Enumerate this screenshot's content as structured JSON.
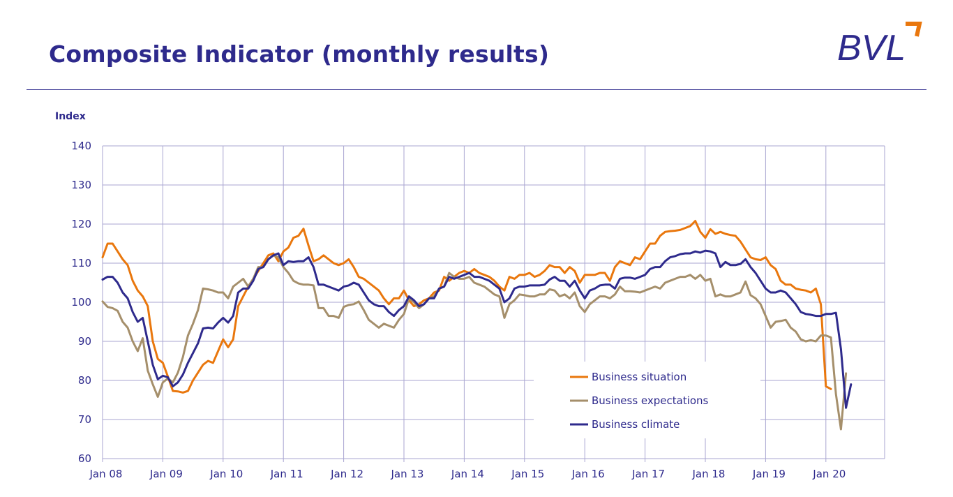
{
  "title": "Composite Indicator (monthly results)",
  "logo_text": "BVL",
  "colors": {
    "title": "#2e2a8c",
    "grid": "#a9a6d1",
    "situation": "#e9770d",
    "expectations": "#a58f6b",
    "climate": "#2e2a8c",
    "logo_accent": "#e9770d"
  },
  "chart_data": {
    "type": "line",
    "ylabel": "Index",
    "xlabel": "",
    "ylim": [
      60,
      140
    ],
    "yticks": [
      60,
      70,
      80,
      90,
      100,
      110,
      120,
      130,
      140
    ],
    "xticks": [
      "Jan 08",
      "Jan 09",
      "Jan 10",
      "Jan 11",
      "Jan 12",
      "Jan 13",
      "Jan 14",
      "Jan 15",
      "Jan 16",
      "Jan 17",
      "Jan 18",
      "Jan 19",
      "Jan 20"
    ],
    "start": "Jan 08",
    "grid": true,
    "legend_position": "bottom-right",
    "series": [
      {
        "name": "Business situation",
        "color": "#e9770d",
        "values": [
          111.5,
          115,
          115,
          113,
          111,
          109.5,
          105.5,
          103,
          101.5,
          99,
          90,
          85.5,
          84.5,
          81,
          77.3,
          77.2,
          76.9,
          77.3,
          80,
          82,
          84,
          85,
          84.5,
          87.5,
          90.5,
          88.5,
          90.5,
          99,
          101.5,
          104,
          106,
          108,
          110,
          112,
          112.5,
          110.5,
          113,
          114,
          116.5,
          117,
          118.8,
          114.5,
          110.5,
          111,
          112,
          111,
          110,
          109.5,
          110,
          111,
          109,
          106.5,
          106,
          105,
          104,
          103,
          101,
          99.5,
          101,
          101,
          103,
          100.5,
          99,
          99.5,
          100.5,
          101,
          102.5,
          103,
          106.5,
          105.5,
          106.5,
          107.5,
          108,
          107.5,
          108.5,
          107.5,
          107,
          106.5,
          105.5,
          104,
          103,
          106.5,
          106,
          107,
          107,
          107.5,
          106.5,
          107,
          108,
          109.5,
          109,
          109,
          107.5,
          109,
          108,
          105,
          107,
          107,
          107,
          107.5,
          107.5,
          105.5,
          109,
          110.5,
          110,
          109.5,
          111.5,
          111,
          113,
          115,
          115,
          117,
          118,
          118.2,
          118.3,
          118.5,
          119,
          119.5,
          120.8,
          118,
          116.5,
          118.7,
          117.5,
          118,
          117.5,
          117.2,
          117,
          115.5,
          113.5,
          111.5,
          111,
          110.8,
          111.5,
          109.5,
          108.5,
          105.5,
          104.5,
          104.5,
          103.5,
          103.2,
          103,
          102.5,
          103.5,
          99.5,
          78.5,
          77.8
        ]
      },
      {
        "name": "Business expectations",
        "color": "#a58f6b",
        "values": [
          100.2,
          98.8,
          98.5,
          97.8,
          95,
          93.5,
          90,
          87.5,
          90.8,
          82.5,
          79,
          75.8,
          79.5,
          80.5,
          79.5,
          82,
          86,
          91.5,
          94.5,
          98,
          103.5,
          103.3,
          103,
          102.5,
          102.5,
          101,
          104,
          105,
          106,
          104,
          106,
          109,
          109,
          111,
          112,
          111.5,
          109,
          107.5,
          105.5,
          104.8,
          104.5,
          104.5,
          104.3,
          98.5,
          98.5,
          96.5,
          96.5,
          96,
          98.8,
          99.3,
          99.5,
          100.2,
          98,
          95.5,
          94.5,
          93.5,
          94.5,
          94,
          93.5,
          95.5,
          97,
          101,
          100,
          98.5,
          99.5,
          101,
          101.5,
          103.5,
          104,
          107.5,
          106.5,
          106,
          106,
          106.5,
          105,
          104.5,
          104,
          103,
          102,
          101.5,
          96,
          99.5,
          100.5,
          102,
          101.8,
          101.5,
          101.5,
          102,
          102,
          103.3,
          103,
          101.5,
          102,
          101,
          102.5,
          99,
          97.5,
          99.5,
          100.5,
          101.5,
          101.5,
          101,
          102,
          104,
          102.8,
          102.8,
          102.7,
          102.5,
          103,
          103.5,
          104,
          103.5,
          105,
          105.5,
          106,
          106.5,
          106.5,
          107,
          106,
          107,
          105.5,
          106,
          101.5,
          102,
          101.5,
          101.5,
          102,
          102.5,
          105.3,
          101.8,
          101,
          99.5,
          96.5,
          93.5,
          95,
          95.2,
          95.5,
          93.5,
          92.5,
          90.5,
          90,
          90.3,
          90,
          91.5,
          91.5,
          91,
          76.5,
          67.5,
          81.8
        ]
      },
      {
        "name": "Business climate",
        "color": "#2e2a8c",
        "values": [
          105.8,
          106.5,
          106.5,
          105,
          102.5,
          101,
          97.5,
          95,
          96,
          90,
          84,
          80.3,
          81.2,
          80.8,
          78.5,
          79.5,
          81.5,
          84.5,
          87,
          89.5,
          93.3,
          93.5,
          93.3,
          94.8,
          96,
          94.8,
          96.5,
          102.5,
          103.5,
          103.5,
          105.5,
          108.5,
          109,
          111,
          112,
          112.5,
          109.5,
          110.5,
          110.3,
          110.5,
          110.5,
          111.5,
          109,
          104.5,
          104.5,
          104,
          103.5,
          103,
          104,
          104.3,
          105,
          104.5,
          102.5,
          100.5,
          99.5,
          99,
          99,
          97.5,
          96.5,
          98,
          99,
          101.5,
          100.5,
          99,
          99.5,
          101,
          101,
          103.5,
          104,
          106.5,
          106,
          106.5,
          107,
          107.5,
          106.5,
          106.5,
          106,
          105.5,
          104.5,
          103.5,
          100,
          101,
          103.5,
          104,
          104,
          104.3,
          104.3,
          104.3,
          104.5,
          105.8,
          106.5,
          105.5,
          105.5,
          104,
          105.5,
          103,
          101,
          103,
          103.5,
          104.3,
          104.5,
          104.5,
          103.5,
          106,
          106.3,
          106.3,
          106,
          106.5,
          107,
          108.5,
          109,
          109,
          110.5,
          111.5,
          111.8,
          112.3,
          112.5,
          112.5,
          113,
          112.7,
          113.2,
          113,
          112.5,
          109,
          110.3,
          109.5,
          109.5,
          109.8,
          111,
          109,
          107.5,
          105.5,
          103.5,
          102.5,
          102.5,
          103,
          102.5,
          101,
          99.5,
          97.5,
          97,
          96.8,
          96.5,
          96.5,
          97,
          97,
          97.3,
          88,
          73,
          79
        ]
      }
    ]
  }
}
